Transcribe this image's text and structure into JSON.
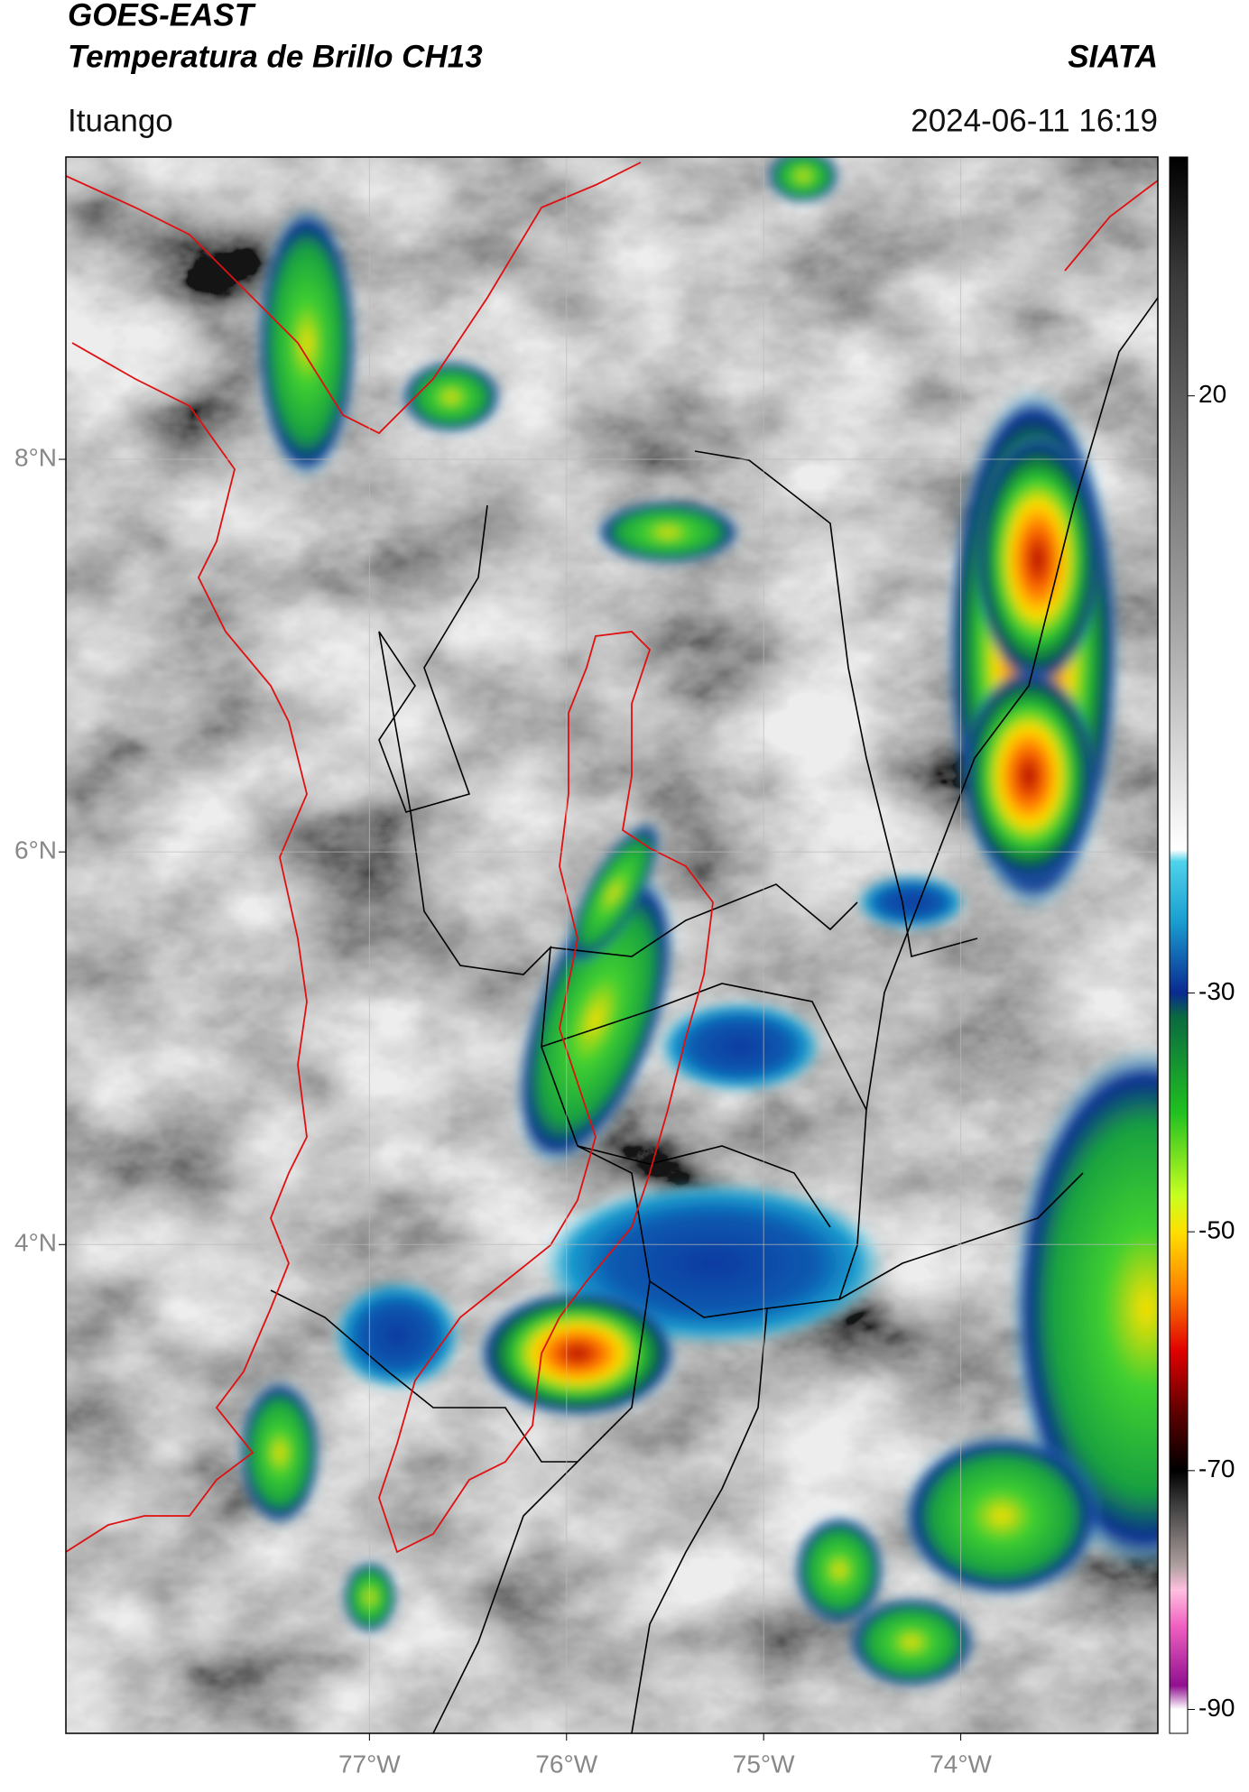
{
  "header": {
    "title": "GOES-EAST",
    "subtitle": "Temperatura de Brillo CH13",
    "source": "SIATA",
    "location": "Ituango",
    "datetime": "2024-06-11 16:19"
  },
  "map": {
    "xlim": [
      -78.54,
      -73.0
    ],
    "ylim": [
      1.51,
      9.54
    ],
    "xticks": [
      {
        "value": -77,
        "label": "77°W"
      },
      {
        "value": -76,
        "label": "76°W"
      },
      {
        "value": -75,
        "label": "75°W"
      },
      {
        "value": -74,
        "label": "74°W"
      }
    ],
    "yticks": [
      {
        "value": 8,
        "label": "8°N"
      },
      {
        "value": 6,
        "label": "6°N"
      },
      {
        "value": 4,
        "label": "4°N"
      }
    ],
    "grid": true
  },
  "colorbar": {
    "lim": [
      -92,
      40
    ],
    "ticks": [
      20,
      -30,
      -50,
      -70,
      -90
    ],
    "colormap": [
      {
        "value": 40,
        "color": "#000000"
      },
      {
        "value": 30,
        "color": "#3a3a3a"
      },
      {
        "value": 20,
        "color": "#5c5c5c"
      },
      {
        "value": 0,
        "color": "#a8a8a8"
      },
      {
        "value": -18,
        "color": "#ffffff"
      },
      {
        "value": -19,
        "color": "#4fd2ea"
      },
      {
        "value": -24,
        "color": "#1a9ed0"
      },
      {
        "value": -30,
        "color": "#0a2a90"
      },
      {
        "value": -32,
        "color": "#0a6a40"
      },
      {
        "value": -40,
        "color": "#20c020"
      },
      {
        "value": -47,
        "color": "#c8ff20"
      },
      {
        "value": -50,
        "color": "#ffe000"
      },
      {
        "value": -55,
        "color": "#ff8000"
      },
      {
        "value": -60,
        "color": "#e00000"
      },
      {
        "value": -65,
        "color": "#600000"
      },
      {
        "value": -70,
        "color": "#000000"
      },
      {
        "value": -73,
        "color": "#404040"
      },
      {
        "value": -78,
        "color": "#b0a0a0"
      },
      {
        "value": -80,
        "color": "#ffc0e0"
      },
      {
        "value": -83,
        "color": "#f060c0"
      },
      {
        "value": -88,
        "color": "#901090"
      },
      {
        "value": -90,
        "color": "#ffffff"
      },
      {
        "value": -92,
        "color": "#ffffff"
      }
    ]
  }
}
